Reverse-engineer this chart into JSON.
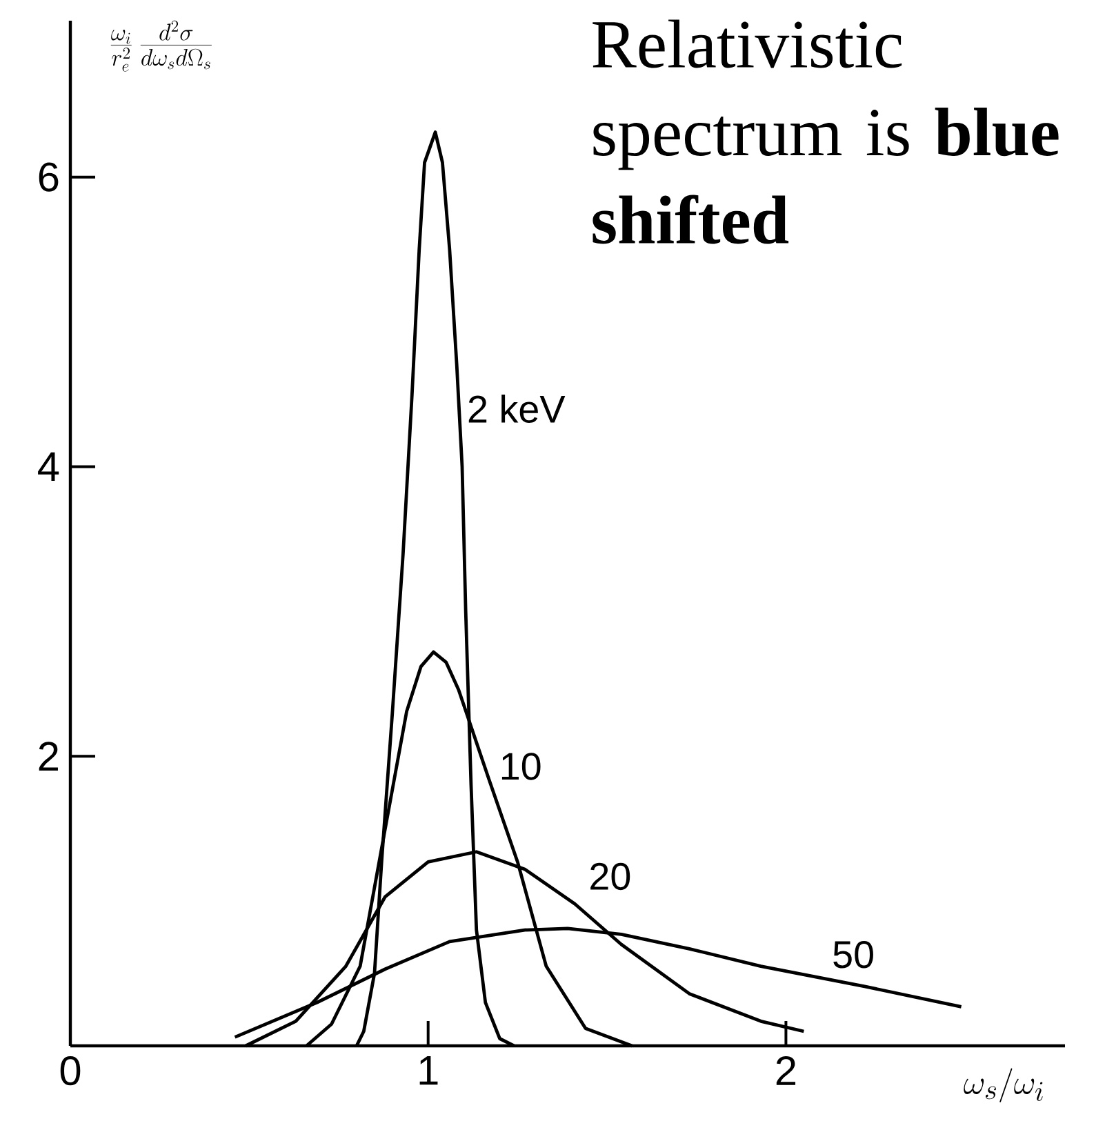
{
  "chart_data": {
    "type": "line",
    "title": "Relativistic spectrum is **blue shifted**",
    "xlabel": "\\omega_s/\\omega_i",
    "ylabel": "\\frac{\\omega_i}{r_e^2}\\,\\frac{d^2\\sigma}{d\\omega_s d\\Omega_s}",
    "xlim": [
      0,
      2.78
    ],
    "ylim": [
      0,
      7.08
    ],
    "xticks": [
      0,
      1,
      2
    ],
    "yticks": [
      2,
      4,
      6
    ],
    "marker": "none",
    "line_style": "solid",
    "series": [
      {
        "name": "2 keV",
        "color": "#000000",
        "x": [
          0.8,
          0.82,
          0.85,
          0.87,
          0.9,
          0.93,
          0.955,
          0.975,
          0.99,
          1.02,
          1.04,
          1.06,
          1.08,
          1.095,
          1.105,
          1.12,
          1.135,
          1.16,
          1.2,
          1.24
        ],
        "values": [
          0,
          0.1,
          0.5,
          1.27,
          2.3,
          3.4,
          4.5,
          5.5,
          6.1,
          6.31,
          6.1,
          5.5,
          4.7,
          4.0,
          3.0,
          1.8,
          0.8,
          0.3,
          0.05,
          0
        ]
      },
      {
        "name": "10",
        "color": "#000000",
        "x": [
          0.66,
          0.73,
          0.81,
          0.88,
          0.94,
          0.98,
          1.015,
          1.05,
          1.085,
          1.17,
          1.25,
          1.33,
          1.44,
          1.57
        ],
        "values": [
          0,
          0.15,
          0.55,
          1.5,
          2.31,
          2.62,
          2.72,
          2.65,
          2.46,
          1.84,
          1.27,
          0.55,
          0.12,
          0
        ]
      },
      {
        "name": "20",
        "color": "#000000",
        "x": [
          0.49,
          0.63,
          0.77,
          0.88,
          1.0,
          1.135,
          1.27,
          1.41,
          1.54,
          1.73,
          1.93,
          2.05
        ],
        "values": [
          0,
          0.17,
          0.55,
          1.03,
          1.27,
          1.34,
          1.22,
          0.98,
          0.7,
          0.36,
          0.17,
          0.1
        ]
      },
      {
        "name": "50",
        "color": "#000000",
        "x": [
          0.46,
          0.69,
          0.88,
          1.06,
          1.27,
          1.39,
          1.54,
          1.73,
          1.93,
          2.22,
          2.49
        ],
        "values": [
          0.06,
          0.3,
          0.53,
          0.72,
          0.8,
          0.81,
          0.77,
          0.67,
          0.55,
          0.41,
          0.27
        ]
      }
    ]
  }
}
